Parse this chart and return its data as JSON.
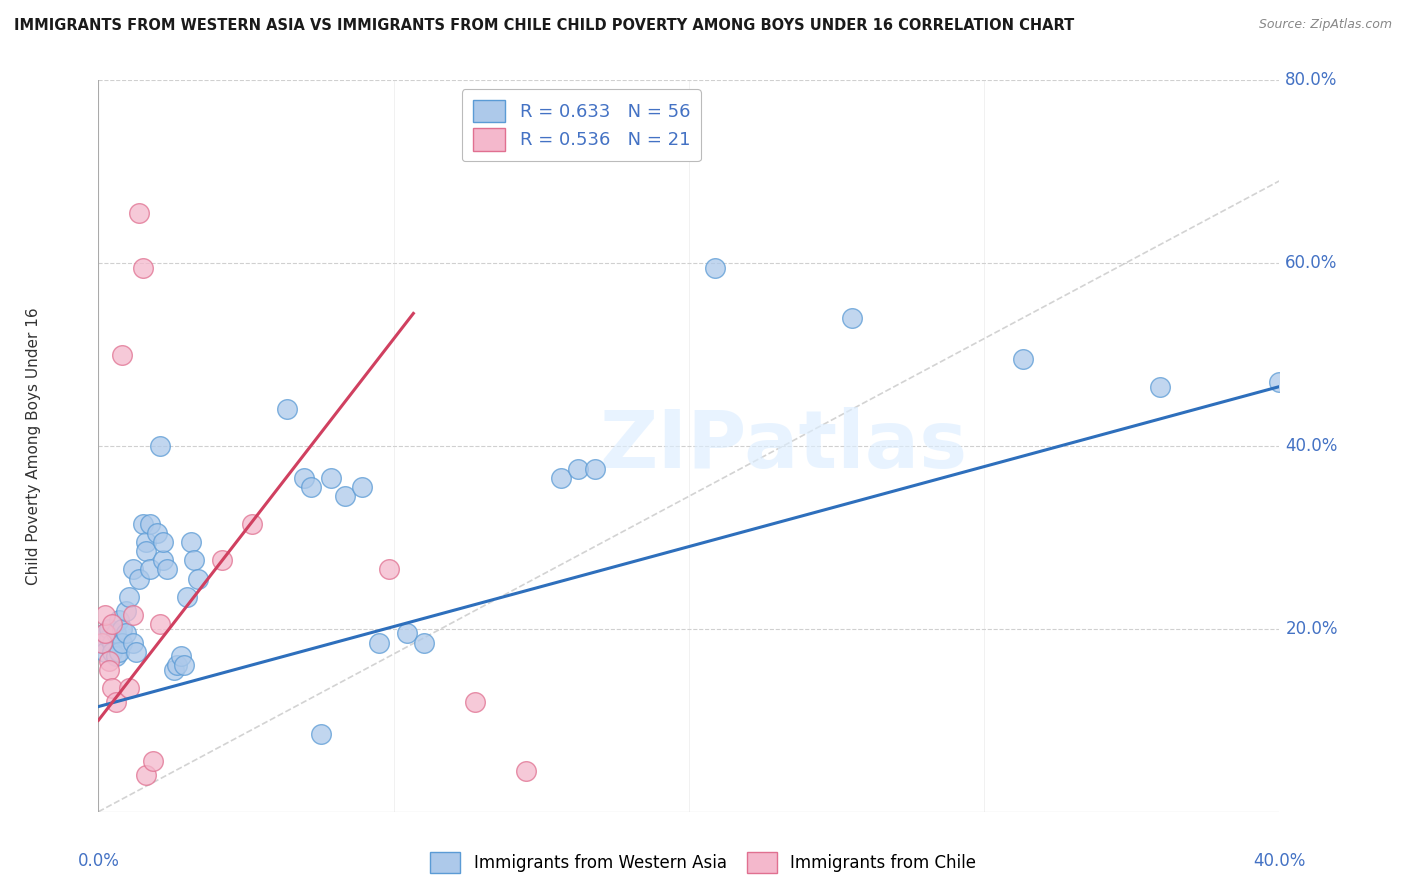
{
  "title": "IMMIGRANTS FROM WESTERN ASIA VS IMMIGRANTS FROM CHILE CHILD POVERTY AMONG BOYS UNDER 16 CORRELATION CHART",
  "source": "Source: ZipAtlas.com",
  "ylabel": "Child Poverty Among Boys Under 16",
  "watermark": "ZIPatlas",
  "legend_line1": "R = 0.633   N = 56",
  "legend_line2": "R = 0.536   N = 21",
  "blue_scatter_color": "#adc9ea",
  "pink_scatter_color": "#f4b8cc",
  "blue_edge_color": "#5b9bd5",
  "pink_edge_color": "#e07090",
  "blue_line_color": "#2e6fbc",
  "pink_line_color": "#d04060",
  "diagonal_color": "#c8c8c8",
  "plot_bg": "#ffffff",
  "blue_scatter": [
    [
      0.001,
      0.185
    ],
    [
      0.002,
      0.175
    ],
    [
      0.002,
      0.195
    ],
    [
      0.003,
      0.19
    ],
    [
      0.003,
      0.2
    ],
    [
      0.004,
      0.185
    ],
    [
      0.004,
      0.175
    ],
    [
      0.005,
      0.17
    ],
    [
      0.005,
      0.195
    ],
    [
      0.006,
      0.21
    ],
    [
      0.006,
      0.175
    ],
    [
      0.007,
      0.2
    ],
    [
      0.007,
      0.185
    ],
    [
      0.008,
      0.22
    ],
    [
      0.008,
      0.195
    ],
    [
      0.009,
      0.235
    ],
    [
      0.01,
      0.265
    ],
    [
      0.01,
      0.185
    ],
    [
      0.011,
      0.175
    ],
    [
      0.012,
      0.255
    ],
    [
      0.013,
      0.315
    ],
    [
      0.014,
      0.295
    ],
    [
      0.014,
      0.285
    ],
    [
      0.015,
      0.315
    ],
    [
      0.015,
      0.265
    ],
    [
      0.017,
      0.305
    ],
    [
      0.018,
      0.4
    ],
    [
      0.019,
      0.275
    ],
    [
      0.019,
      0.295
    ],
    [
      0.02,
      0.265
    ],
    [
      0.022,
      0.155
    ],
    [
      0.023,
      0.16
    ],
    [
      0.024,
      0.17
    ],
    [
      0.025,
      0.16
    ],
    [
      0.026,
      0.235
    ],
    [
      0.027,
      0.295
    ],
    [
      0.028,
      0.275
    ],
    [
      0.029,
      0.255
    ],
    [
      0.055,
      0.44
    ],
    [
      0.06,
      0.365
    ],
    [
      0.062,
      0.355
    ],
    [
      0.065,
      0.085
    ],
    [
      0.068,
      0.365
    ],
    [
      0.072,
      0.345
    ],
    [
      0.077,
      0.355
    ],
    [
      0.082,
      0.185
    ],
    [
      0.09,
      0.195
    ],
    [
      0.095,
      0.185
    ],
    [
      0.135,
      0.365
    ],
    [
      0.14,
      0.375
    ],
    [
      0.145,
      0.375
    ],
    [
      0.18,
      0.595
    ],
    [
      0.22,
      0.54
    ],
    [
      0.27,
      0.495
    ],
    [
      0.31,
      0.465
    ],
    [
      0.345,
      0.47
    ]
  ],
  "pink_scatter": [
    [
      0.001,
      0.185
    ],
    [
      0.002,
      0.195
    ],
    [
      0.002,
      0.215
    ],
    [
      0.003,
      0.165
    ],
    [
      0.003,
      0.155
    ],
    [
      0.004,
      0.205
    ],
    [
      0.004,
      0.135
    ],
    [
      0.005,
      0.12
    ],
    [
      0.007,
      0.5
    ],
    [
      0.009,
      0.135
    ],
    [
      0.01,
      0.215
    ],
    [
      0.012,
      0.655
    ],
    [
      0.013,
      0.595
    ],
    [
      0.014,
      0.04
    ],
    [
      0.016,
      0.055
    ],
    [
      0.018,
      0.205
    ],
    [
      0.036,
      0.275
    ],
    [
      0.045,
      0.315
    ],
    [
      0.085,
      0.265
    ],
    [
      0.11,
      0.12
    ],
    [
      0.125,
      0.045
    ]
  ],
  "blue_line_x": [
    0.0,
    0.345
  ],
  "blue_line_y": [
    0.115,
    0.465
  ],
  "pink_line_x": [
    0.0,
    0.092
  ],
  "pink_line_y": [
    0.1,
    0.545
  ],
  "diagonal_line_x": [
    0.0,
    0.345
  ],
  "diagonal_line_y": [
    0.0,
    0.69
  ],
  "xlim": [
    0.0,
    0.345
  ],
  "ylim": [
    0.0,
    0.8
  ],
  "yticks": [
    0.0,
    0.2,
    0.4,
    0.6,
    0.8
  ],
  "ytick_labels": [
    "",
    "20.0%",
    "40.0%",
    "60.0%",
    "80.0%"
  ],
  "xtick_left_label": "0.0%",
  "xtick_right_label": "40.0%"
}
